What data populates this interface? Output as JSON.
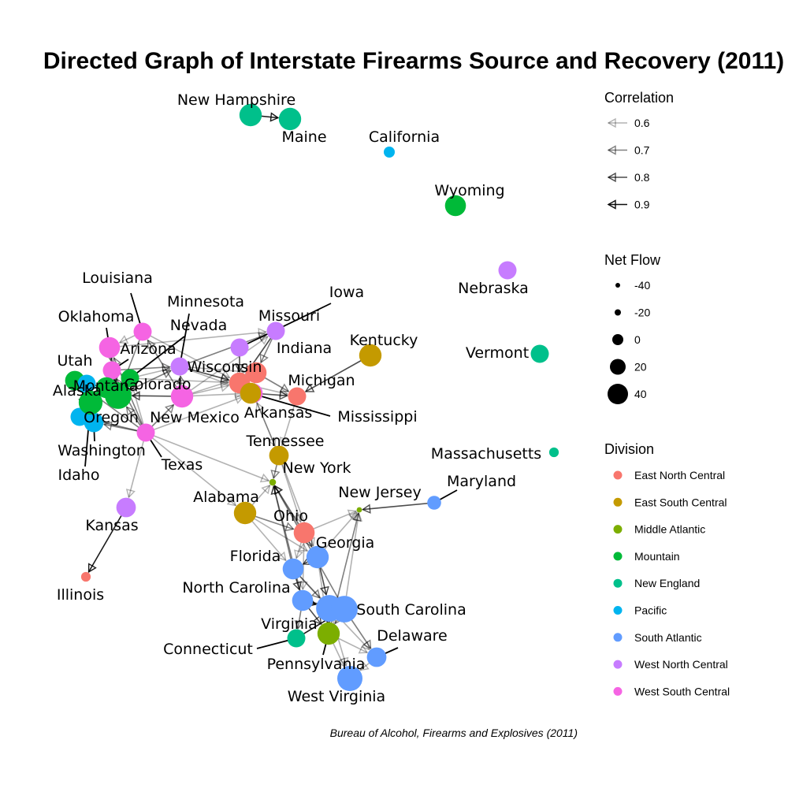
{
  "title": "Directed Graph of Interstate Firearms Source and Recovery (2011)",
  "caption": "Bureau of Alcohol, Firearms and Explosives (2011)",
  "legend": {
    "correlation": {
      "title": "Correlation",
      "items": [
        {
          "label": "0.6",
          "opacity": 0.3
        },
        {
          "label": "0.7",
          "opacity": 0.5
        },
        {
          "label": "0.8",
          "opacity": 0.7
        },
        {
          "label": "0.9",
          "opacity": 0.95
        }
      ]
    },
    "net_flow": {
      "title": "Net Flow",
      "items": [
        {
          "label": "-40",
          "value": -40
        },
        {
          "label": "-20",
          "value": -20
        },
        {
          "label": "0",
          "value": 0
        },
        {
          "label": "20",
          "value": 20
        },
        {
          "label": "40",
          "value": 40
        }
      ]
    },
    "division": {
      "title": "Division",
      "items": [
        {
          "label": "East North Central",
          "color": "#F8766D"
        },
        {
          "label": "East South Central",
          "color": "#C49A00"
        },
        {
          "label": "Middle Atlantic",
          "color": "#7CAE00"
        },
        {
          "label": "Mountain",
          "color": "#00BA38"
        },
        {
          "label": "New England",
          "color": "#00C08B"
        },
        {
          "label": "Pacific",
          "color": "#00B4EF"
        },
        {
          "label": "South Atlantic",
          "color": "#619CFF"
        },
        {
          "label": "West North Central",
          "color": "#C77CFF"
        },
        {
          "label": "West South Central",
          "color": "#F564E3"
        }
      ]
    }
  },
  "nodes": [
    {
      "id": "New Hampshire",
      "label": "New Hampshire",
      "division": 4,
      "flow": 15
    },
    {
      "id": "Maine",
      "label": "Maine",
      "division": 4,
      "flow": 15
    },
    {
      "id": "California",
      "label": "California",
      "division": 5,
      "flow": -25
    },
    {
      "id": "Wyoming",
      "label": "Wyoming",
      "division": 3,
      "flow": 10
    },
    {
      "id": "Nebraska",
      "label": "Nebraska",
      "division": 7,
      "flow": 0
    },
    {
      "id": "Vermont",
      "label": "Vermont",
      "division": 4,
      "flow": 0
    },
    {
      "id": "Massachusetts",
      "label": "Massachusetts",
      "division": 4,
      "flow": -30
    },
    {
      "id": "Louisiana",
      "label": "Louisiana",
      "division": 8,
      "flow": 0
    },
    {
      "id": "Oklahoma",
      "label": "Oklahoma",
      "division": 8,
      "flow": 10
    },
    {
      "id": "Arizona",
      "label": "Arizona",
      "division": 8,
      "flow": 0
    },
    {
      "id": "Utah",
      "label": "Utah",
      "division": 3,
      "flow": 5
    },
    {
      "id": "Alaska",
      "label": "Alaska",
      "division": 5,
      "flow": 0
    },
    {
      "id": "Montana",
      "label": "Montana",
      "division": 3,
      "flow": 10
    },
    {
      "id": "Colorado",
      "label": "Colorado",
      "division": 3,
      "flow": 30
    },
    {
      "id": "Oregon",
      "label": "Oregon",
      "division": 5,
      "flow": 0
    },
    {
      "id": "Washington",
      "label": "Washington",
      "division": 5,
      "flow": 5
    },
    {
      "id": "Idaho",
      "label": "Idaho",
      "division": 3,
      "flow": 20
    },
    {
      "id": "Minnesota",
      "label": "Minnesota",
      "division": 7,
      "flow": 0
    },
    {
      "id": "Nevada",
      "label": "Nevada",
      "division": 3,
      "flow": 0
    },
    {
      "id": "New Mexico",
      "label": "New Mexico",
      "division": 8,
      "flow": 15
    },
    {
      "id": "Texas",
      "label": "Texas",
      "division": 8,
      "flow": 0
    },
    {
      "id": "Missouri",
      "label": "Missouri",
      "division": 7,
      "flow": 0
    },
    {
      "id": "Iowa",
      "label": "Iowa",
      "division": 7,
      "flow": 0
    },
    {
      "id": "Indiana",
      "label": "Indiana",
      "division": 0,
      "flow": 10
    },
    {
      "id": "Wisconsin",
      "label": "Wisconsin",
      "division": 0,
      "flow": 10
    },
    {
      "id": "Arkansas",
      "label": "Arkansas",
      "division": 8,
      "flow": 5
    },
    {
      "id": "Michigan",
      "label": "Michigan",
      "division": 0,
      "flow": 0
    },
    {
      "id": "Mississippi",
      "label": "Mississippi",
      "division": 1,
      "flow": 10
    },
    {
      "id": "Kentucky",
      "label": "Kentucky",
      "division": 1,
      "flow": 15
    },
    {
      "id": "Tennessee",
      "label": "Tennessee",
      "division": 1,
      "flow": 5
    },
    {
      "id": "New York",
      "label": "New York",
      "division": 2,
      "flow": -40
    },
    {
      "id": "New Jersey",
      "label": "New Jersey",
      "division": 2,
      "flow": -45
    },
    {
      "id": "Maryland",
      "label": "Maryland",
      "division": 6,
      "flow": -15
    },
    {
      "id": "Alabama",
      "label": "Alabama",
      "division": 1,
      "flow": 15
    },
    {
      "id": "Ohio",
      "label": "Ohio",
      "division": 0,
      "flow": 10
    },
    {
      "id": "Kansas",
      "label": "Kansas",
      "division": 7,
      "flow": 5
    },
    {
      "id": "Illinois",
      "label": "Illinois",
      "division": 0,
      "flow": -30
    },
    {
      "id": "Georgia",
      "label": "Georgia",
      "division": 6,
      "flow": 15
    },
    {
      "id": "Florida",
      "label": "Florida",
      "division": 6,
      "flow": 10
    },
    {
      "id": "North Carolina",
      "label": "North Carolina",
      "division": 6,
      "flow": 10
    },
    {
      "id": "South Carolina",
      "label": "South Carolina",
      "division": 6,
      "flow": 30
    },
    {
      "id": "Virginia",
      "label": "Virginia",
      "division": 6,
      "flow": 30
    },
    {
      "id": "Connecticut",
      "label": "Connecticut",
      "division": 4,
      "flow": 0
    },
    {
      "id": "Pennsylvania",
      "label": "Pennsylvania",
      "division": 2,
      "flow": 15
    },
    {
      "id": "Delaware",
      "label": "Delaware",
      "division": 6,
      "flow": 5
    },
    {
      "id": "West Virginia",
      "label": "West Virginia",
      "division": 6,
      "flow": 25
    }
  ],
  "edges": [
    {
      "from": "New Hampshire",
      "to": "Maine",
      "corr": 0.9
    },
    {
      "from": "Kansas",
      "to": "Illinois",
      "corr": 0.9
    },
    {
      "from": "Kentucky",
      "to": "Michigan",
      "corr": 0.8
    },
    {
      "from": "Maryland",
      "to": "New Jersey",
      "corr": 0.8
    },
    {
      "from": "Georgia",
      "to": "New Jersey",
      "corr": 0.6
    },
    {
      "from": "Ohio",
      "to": "New Jersey",
      "corr": 0.6
    },
    {
      "from": "Virginia",
      "to": "New Jersey",
      "corr": 0.6
    },
    {
      "from": "Florida",
      "to": "New York",
      "corr": 0.7
    },
    {
      "from": "Georgia",
      "to": "New York",
      "corr": 0.6
    },
    {
      "from": "Virginia",
      "to": "New York",
      "corr": 0.7
    },
    {
      "from": "Ohio",
      "to": "New York",
      "corr": 0.7
    },
    {
      "from": "North Carolina",
      "to": "New York",
      "corr": 0.7
    },
    {
      "from": "Texas",
      "to": "New York",
      "corr": 0.6
    },
    {
      "from": "Alabama",
      "to": "New York",
      "corr": 0.6
    },
    {
      "from": "Tennessee",
      "to": "New York",
      "corr": 0.7
    },
    {
      "from": "Pennsylvania",
      "to": "New Jersey",
      "corr": 0.7
    },
    {
      "from": "Tennessee",
      "to": "Ohio",
      "corr": 0.6
    },
    {
      "from": "Tennessee",
      "to": "Arkansas",
      "corr": 0.6
    },
    {
      "from": "Alabama",
      "to": "Ohio",
      "corr": 0.7
    },
    {
      "from": "Alabama",
      "to": "Georgia",
      "corr": 0.6
    },
    {
      "from": "Georgia",
      "to": "Florida",
      "corr": 0.8
    },
    {
      "from": "Georgia",
      "to": "South Carolina",
      "corr": 0.8
    },
    {
      "from": "Georgia",
      "to": "Pennsylvania",
      "corr": 0.6
    },
    {
      "from": "Florida",
      "to": "North Carolina",
      "corr": 0.8
    },
    {
      "from": "Florida",
      "to": "South Carolina",
      "corr": 0.7
    },
    {
      "from": "Florida",
      "to": "Delaware",
      "corr": 0.6
    },
    {
      "from": "North Carolina",
      "to": "South Carolina",
      "corr": 0.9
    },
    {
      "from": "North Carolina",
      "to": "Virginia",
      "corr": 0.8
    },
    {
      "from": "North Carolina",
      "to": "Pennsylvania",
      "corr": 0.8
    },
    {
      "from": "North Carolina",
      "to": "Connecticut",
      "corr": 0.7
    },
    {
      "from": "South Carolina",
      "to": "Virginia",
      "corr": 0.8
    },
    {
      "from": "South Carolina",
      "to": "Pennsylvania",
      "corr": 0.6
    },
    {
      "from": "Virginia",
      "to": "Pennsylvania",
      "corr": 0.7
    },
    {
      "from": "Virginia",
      "to": "Delaware",
      "corr": 0.7
    },
    {
      "from": "Connecticut",
      "to": "Virginia",
      "corr": 0.9
    },
    {
      "from": "Pennsylvania",
      "to": "Delaware",
      "corr": 0.6
    },
    {
      "from": "Delaware",
      "to": "West Virginia",
      "corr": 0.6
    },
    {
      "from": "Pennsylvania",
      "to": "West Virginia",
      "corr": 0.6
    },
    {
      "from": "South Carolina",
      "to": "West Virginia",
      "corr": 0.6
    },
    {
      "from": "Ohio",
      "to": "Florida",
      "corr": 0.6
    },
    {
      "from": "Ohio",
      "to": "Georgia",
      "corr": 0.7
    },
    {
      "from": "Ohio",
      "to": "North Carolina",
      "corr": 0.6
    },
    {
      "from": "Alabama",
      "to": "Florida",
      "corr": 0.6
    },
    {
      "from": "Texas",
      "to": "Alabama",
      "corr": 0.6
    },
    {
      "from": "Texas",
      "to": "Kansas",
      "corr": 0.6
    },
    {
      "from": "Texas",
      "to": "Arkansas",
      "corr": 0.6
    },
    {
      "from": "Texas",
      "to": "New Mexico",
      "corr": 0.7
    },
    {
      "from": "Texas",
      "to": "Colorado",
      "corr": 0.7
    },
    {
      "from": "Texas",
      "to": "Oklahoma",
      "corr": 0.7
    },
    {
      "from": "Texas",
      "to": "Oregon",
      "corr": 0.7
    },
    {
      "from": "Texas",
      "to": "Washington",
      "corr": 0.7
    },
    {
      "from": "Texas",
      "to": "Arizona",
      "corr": 0.7
    },
    {
      "from": "Texas",
      "to": "Nevada",
      "corr": 0.6
    },
    {
      "from": "Texas",
      "to": "Utah",
      "corr": 0.7
    },
    {
      "from": "New Mexico",
      "to": "Colorado",
      "corr": 0.8
    },
    {
      "from": "New Mexico",
      "to": "Wisconsin",
      "corr": 0.6
    },
    {
      "from": "New Mexico",
      "to": "Missouri",
      "corr": 0.6
    },
    {
      "from": "New Mexico",
      "to": "Indiana",
      "corr": 0.6
    },
    {
      "from": "New Mexico",
      "to": "Minnesota",
      "corr": 0.7
    },
    {
      "from": "New Mexico",
      "to": "Arkansas",
      "corr": 0.6
    },
    {
      "from": "New Mexico",
      "to": "Louisiana",
      "corr": 0.7
    },
    {
      "from": "Nevada",
      "to": "Wisconsin",
      "corr": 0.6
    },
    {
      "from": "Nevada",
      "to": "Minnesota",
      "corr": 0.6
    },
    {
      "from": "Nevada",
      "to": "Colorado",
      "corr": 0.7
    },
    {
      "from": "Oklahoma",
      "to": "Colorado",
      "corr": 0.8
    },
    {
      "from": "Oklahoma",
      "to": "Arizona",
      "corr": 0.7
    },
    {
      "from": "Oklahoma",
      "to": "Missouri",
      "corr": 0.6
    },
    {
      "from": "Louisiana",
      "to": "Colorado",
      "corr": 0.7
    },
    {
      "from": "Louisiana",
      "to": "Wisconsin",
      "corr": 0.6
    },
    {
      "from": "Louisiana",
      "to": "Oklahoma",
      "corr": 0.6
    },
    {
      "from": "Utah",
      "to": "Montana",
      "corr": 0.9
    },
    {
      "from": "Utah",
      "to": "Idaho",
      "corr": 0.9
    },
    {
      "from": "Utah",
      "to": "Colorado",
      "corr": 0.9
    },
    {
      "from": "Alaska",
      "to": "Oregon",
      "corr": 0.9
    },
    {
      "from": "Alaska",
      "to": "Washington",
      "corr": 0.9
    },
    {
      "from": "Alaska",
      "to": "Montana",
      "corr": 0.9
    },
    {
      "from": "Montana",
      "to": "Colorado",
      "corr": 0.9
    },
    {
      "from": "Montana",
      "to": "Idaho",
      "corr": 0.9
    },
    {
      "from": "Montana",
      "to": "Oregon",
      "corr": 0.9
    },
    {
      "from": "Oregon",
      "to": "Washington",
      "corr": 0.9
    },
    {
      "from": "Oregon",
      "to": "Idaho",
      "corr": 0.9
    },
    {
      "from": "Washington",
      "to": "Idaho",
      "corr": 0.9
    },
    {
      "from": "Colorado",
      "to": "Arizona",
      "corr": 0.8
    },
    {
      "from": "Colorado",
      "to": "Minnesota",
      "corr": 0.7
    },
    {
      "from": "Arizona",
      "to": "Minnesota",
      "corr": 0.7
    },
    {
      "from": "Minnesota",
      "to": "Wisconsin",
      "corr": 0.8
    },
    {
      "from": "Minnesota",
      "to": "Missouri",
      "corr": 0.7
    },
    {
      "from": "Minnesota",
      "to": "Indiana",
      "corr": 0.6
    },
    {
      "from": "Minnesota",
      "to": "Arkansas",
      "corr": 0.6
    },
    {
      "from": "Iowa",
      "to": "Wisconsin",
      "corr": 0.8
    },
    {
      "from": "Missouri",
      "to": "Wisconsin",
      "corr": 0.8
    },
    {
      "from": "Missouri",
      "to": "Indiana",
      "corr": 0.7
    },
    {
      "from": "Wisconsin",
      "to": "Indiana",
      "corr": 0.8
    },
    {
      "from": "Wisconsin",
      "to": "Arkansas",
      "corr": 0.7
    },
    {
      "from": "Wisconsin",
      "to": "Michigan",
      "corr": 0.6
    },
    {
      "from": "Indiana",
      "to": "Arkansas",
      "corr": 0.7
    },
    {
      "from": "Indiana",
      "to": "Michigan",
      "corr": 0.7
    },
    {
      "from": "Arkansas",
      "to": "Michigan",
      "corr": 0.7
    },
    {
      "from": "Mississippi",
      "to": "Wisconsin",
      "corr": 0.6
    },
    {
      "from": "Mississippi",
      "to": "Michigan",
      "corr": 0.6
    },
    {
      "from": "Arkansas",
      "to": "Tennessee",
      "corr": 0.6
    },
    {
      "from": "Michigan",
      "to": "Tennessee",
      "corr": 0.6
    },
    {
      "from": "Tennessee",
      "to": "Georgia",
      "corr": 0.6
    }
  ]
}
